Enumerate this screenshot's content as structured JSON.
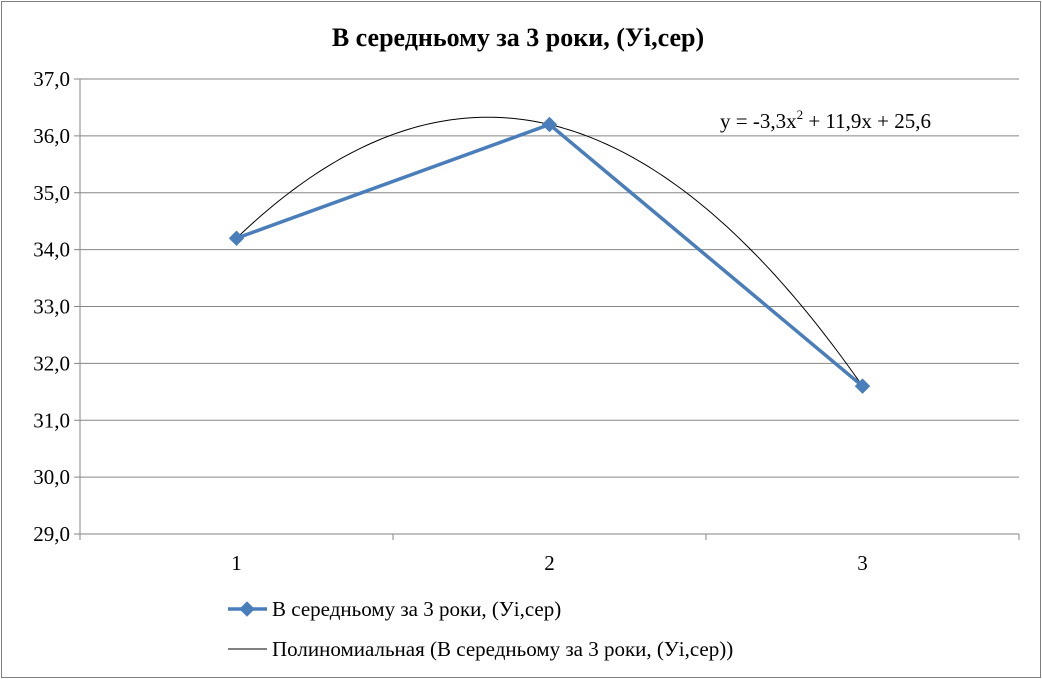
{
  "chart_data": {
    "type": "line",
    "title": "В середньому за 3 роки, (Уі,сер)",
    "categories": [
      "1",
      "2",
      "3"
    ],
    "x": [
      1,
      2,
      3
    ],
    "series": [
      {
        "name": "В середньому за 3 роки, (Уі,сер)",
        "values": [
          34.2,
          36.2,
          31.6
        ],
        "color": "#4a7ebb",
        "marker": "diamond"
      }
    ],
    "trendline": {
      "name": "Полиномиальная (В середньому за 3 роки, (Уі,сер))",
      "type": "polynomial",
      "order": 2,
      "coefficients": [
        -3.3,
        11.9,
        25.6
      ],
      "equation_parts": {
        "lead": "y = -3,3x",
        "exponent": "2",
        "tail": " + 11,9x + 25,6"
      },
      "color": "#000000"
    },
    "ylim": [
      29.0,
      37.0
    ],
    "yticks": [
      29.0,
      30.0,
      31.0,
      32.0,
      33.0,
      34.0,
      35.0,
      36.0,
      37.0
    ],
    "ytick_labels": [
      "29,0",
      "30,0",
      "31,0",
      "32,0",
      "33,0",
      "34,0",
      "35,0",
      "36,0",
      "37,0"
    ],
    "xlabel": "",
    "ylabel": "",
    "grid": "horizontal",
    "legend": "bottom",
    "gridline_color": "#868686",
    "axis_color": "#868686"
  }
}
